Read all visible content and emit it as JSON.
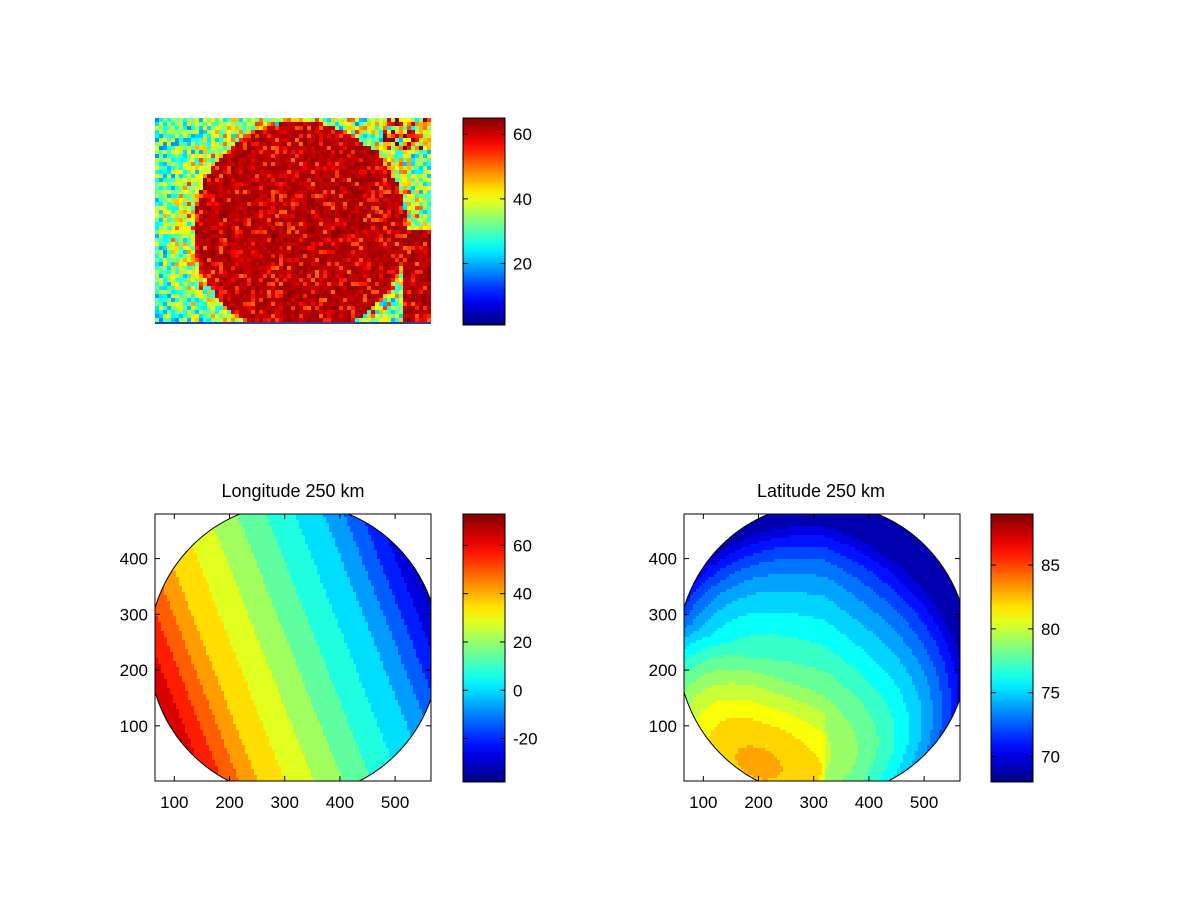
{
  "chart_data": [
    {
      "type": "heatmap",
      "title": "",
      "colormap": "jet",
      "colorbar": {
        "range": [
          1,
          65
        ],
        "ticks": [
          20,
          40,
          60
        ]
      },
      "description_values": {
        "disk_level": 64,
        "background_level": 28
      },
      "axes_visible": false
    },
    {
      "type": "heatmap",
      "title": "Longitude 250 km",
      "colormap": "jet",
      "contour_fill": true,
      "xlim": [
        65,
        565
      ],
      "ylim": [
        1,
        480
      ],
      "xticks": [
        100,
        200,
        300,
        400,
        500
      ],
      "yticks": [
        100,
        200,
        300,
        400
      ],
      "colorbar": {
        "range": [
          -38,
          73
        ],
        "ticks": [
          -20,
          0,
          20,
          40,
          60
        ]
      },
      "contour_levels": [
        -35,
        -28,
        -21,
        -14,
        -7,
        0,
        7,
        14,
        21,
        28,
        35,
        42,
        49,
        56,
        63,
        70
      ]
    },
    {
      "type": "heatmap",
      "title": "Latitude 250 km",
      "colormap": "jet",
      "contour_fill": true,
      "xlim": [
        65,
        565
      ],
      "ylim": [
        1,
        480
      ],
      "xticks": [
        100,
        200,
        300,
        400,
        500
      ],
      "yticks": [
        100,
        200,
        300,
        400
      ],
      "colorbar": {
        "range": [
          68,
          89
        ],
        "ticks": [
          70,
          75,
          80,
          85
        ]
      },
      "contour_levels": [
        69,
        70,
        71,
        72,
        73,
        74,
        75,
        76,
        77,
        78,
        79,
        80,
        81,
        82,
        83,
        84,
        85,
        86,
        87,
        88
      ]
    }
  ]
}
